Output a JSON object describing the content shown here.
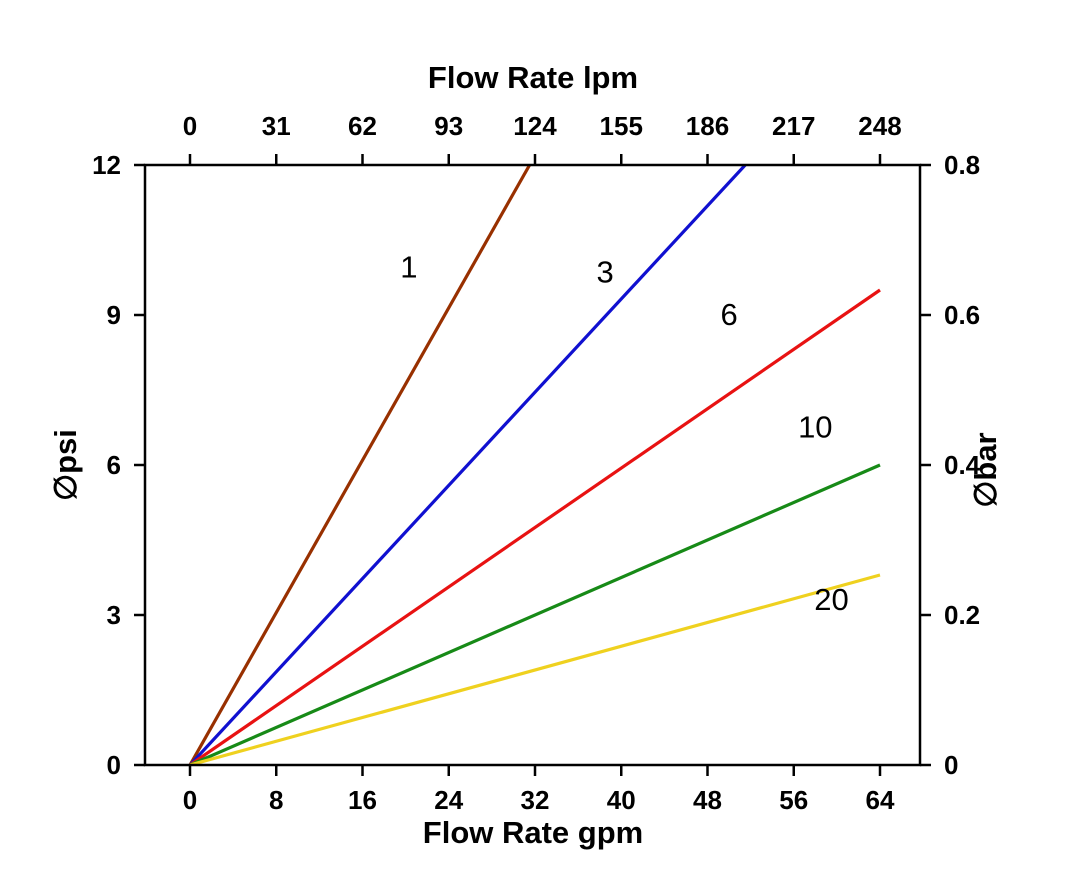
{
  "chart_data": {
    "type": "line",
    "title_top_axis": "Flow Rate lpm",
    "xlabel_bottom": "Flow Rate gpm",
    "ylabel_left": "∅psi",
    "ylabel_right": "∅bar",
    "xlim_gpm": [
      0,
      64
    ],
    "ylim_psi": [
      0,
      12
    ],
    "xlim_lpm": [
      0,
      248
    ],
    "ylim_bar": [
      0,
      0.8
    ],
    "x_bottom_ticks": [
      0,
      8,
      16,
      24,
      32,
      40,
      48,
      56,
      64
    ],
    "x_top_ticks": [
      0,
      31,
      62,
      93,
      124,
      155,
      186,
      217,
      248
    ],
    "y_left_ticks": [
      0,
      3,
      6,
      9,
      12
    ],
    "y_right_ticks": [
      "0",
      "0.2",
      "0.4",
      "0.6",
      "0.8"
    ],
    "grid": false,
    "legend": "inline-labels",
    "axis_color": "#000000",
    "series": [
      {
        "name": "1",
        "color": "#983000",
        "points": [
          [
            0,
            0
          ],
          [
            31.5,
            12
          ]
        ]
      },
      {
        "name": "3",
        "color": "#1010d0",
        "points": [
          [
            0,
            0
          ],
          [
            51.5,
            12
          ]
        ]
      },
      {
        "name": "6",
        "color": "#e81212",
        "points": [
          [
            0,
            0
          ],
          [
            64,
            9.5
          ]
        ]
      },
      {
        "name": "10",
        "color": "#178a17",
        "points": [
          [
            0,
            0
          ],
          [
            64,
            6.0
          ]
        ]
      },
      {
        "name": "20",
        "color": "#efd11f",
        "points": [
          [
            0,
            0
          ],
          [
            64,
            3.8
          ]
        ]
      }
    ],
    "inline_labels": [
      {
        "text": "1",
        "x": 20.3,
        "y": 9.75
      },
      {
        "text": "3",
        "x": 38.5,
        "y": 9.65
      },
      {
        "text": "6",
        "x": 50.0,
        "y": 8.8
      },
      {
        "text": "10",
        "x": 58.0,
        "y": 6.55
      },
      {
        "text": "20",
        "x": 59.5,
        "y": 3.1
      }
    ]
  }
}
